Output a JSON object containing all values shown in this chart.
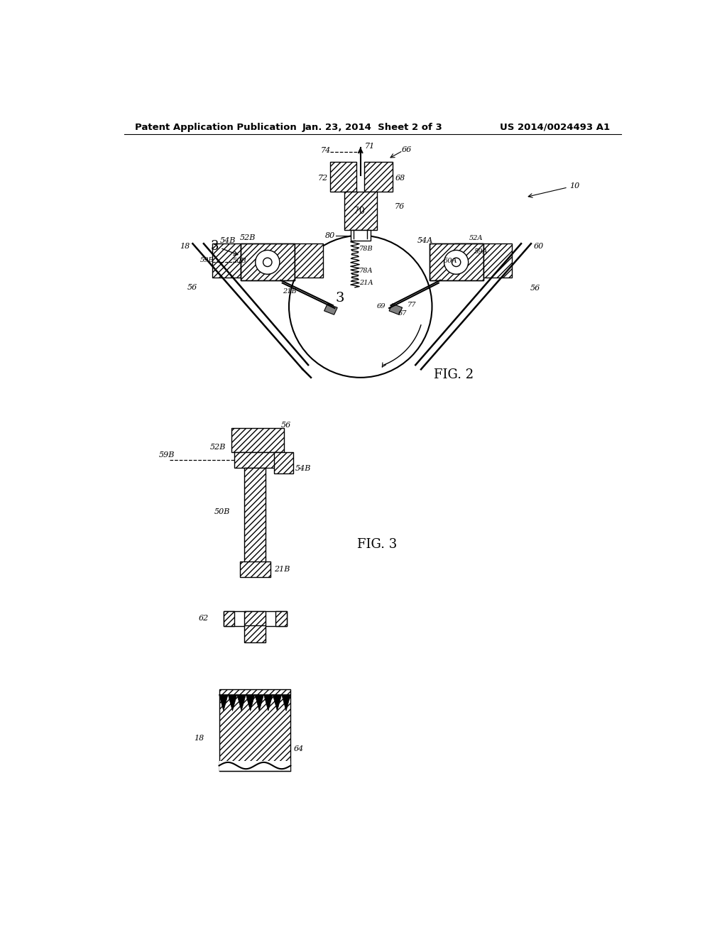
{
  "header_left": "Patent Application Publication",
  "header_center": "Jan. 23, 2014  Sheet 2 of 3",
  "header_right": "US 2014/0024493 A1",
  "fig2_label": "FIG. 2",
  "fig3_label": "FIG. 3",
  "bg_color": "#ffffff"
}
